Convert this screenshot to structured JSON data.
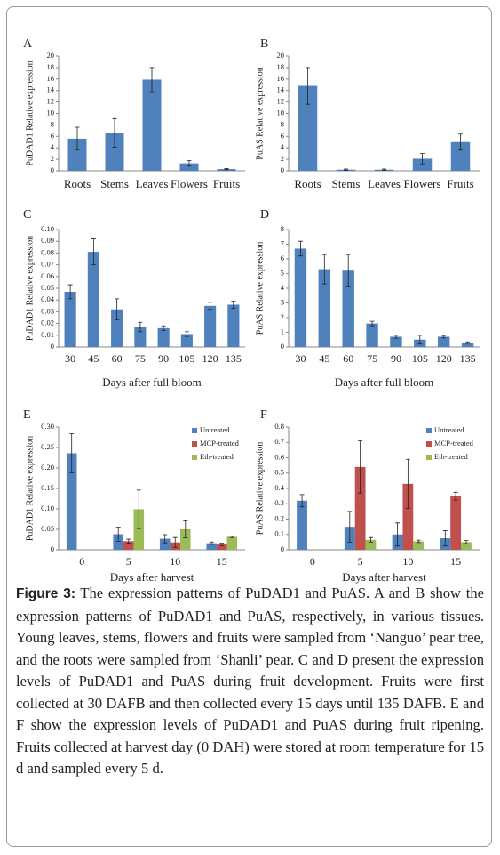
{
  "chart_data": [
    {
      "type": "bar",
      "panel": "A",
      "y_label": "PuDAD1 Relative expression",
      "categories": [
        "Roots",
        "Stems",
        "Leaves",
        "Flowers",
        "Fruits"
      ],
      "values": [
        5.6,
        6.6,
        15.9,
        1.3,
        0.3
      ],
      "errors": [
        2.0,
        2.5,
        2.1,
        0.5,
        0.1
      ],
      "color": "#4f81bd",
      "ylim": [
        0,
        20
      ],
      "yticks": [
        0,
        2,
        4,
        6,
        8,
        10,
        12,
        14,
        16,
        18,
        20
      ]
    },
    {
      "type": "bar",
      "panel": "B",
      "y_label": "PuAS Relative expression",
      "categories": [
        "Roots",
        "Stems",
        "Leaves",
        "Flowers",
        "Fruits"
      ],
      "values": [
        14.8,
        0.2,
        0.2,
        2.1,
        5.0
      ],
      "errors": [
        3.2,
        0.1,
        0.1,
        0.9,
        1.4
      ],
      "color": "#4f81bd",
      "ylim": [
        0,
        20
      ],
      "yticks": [
        0,
        2,
        4,
        6,
        8,
        10,
        12,
        14,
        16,
        18,
        20
      ]
    },
    {
      "type": "bar",
      "panel": "C",
      "y_label": "PuDAD1 Relative expression",
      "x_label": "Days after full bloom",
      "categories": [
        "30",
        "45",
        "60",
        "75",
        "90",
        "105",
        "120",
        "135"
      ],
      "values": [
        0.047,
        0.081,
        0.032,
        0.017,
        0.016,
        0.011,
        0.035,
        0.036
      ],
      "errors": [
        0.006,
        0.011,
        0.009,
        0.004,
        0.002,
        0.002,
        0.003,
        0.003
      ],
      "color": "#4f81bd",
      "ylim": [
        0,
        0.1
      ],
      "yticks": [
        0,
        0.01,
        0.02,
        0.03,
        0.04,
        0.05,
        0.06,
        0.07,
        0.08,
        0.09,
        {
          "value": 0.1,
          "label": "0.10"
        }
      ]
    },
    {
      "type": "bar",
      "panel": "D",
      "y_label": "PuAS Relative expression",
      "x_label": "Days after full bloom",
      "categories": [
        "30",
        "45",
        "60",
        "75",
        "90",
        "105",
        "120",
        "135"
      ],
      "values": [
        6.7,
        5.3,
        5.2,
        1.6,
        0.7,
        0.5,
        0.7,
        0.3
      ],
      "errors": [
        0.5,
        1.0,
        1.1,
        0.15,
        0.1,
        0.3,
        0.08,
        0.05
      ],
      "color": "#4f81bd",
      "ylim": [
        0,
        8
      ],
      "yticks": [
        0,
        1,
        2,
        3,
        4,
        5,
        6,
        7,
        8
      ]
    },
    {
      "type": "grouped_bar",
      "panel": "E",
      "y_label": "PuDAD1 Relative expression",
      "x_label": "Days after harvest",
      "categories": [
        "0",
        "5",
        "10",
        "15"
      ],
      "legend": "upper right",
      "series": [
        {
          "name": "Untreated",
          "color": "#4f81bd",
          "values": [
            0.236,
            0.038,
            0.027,
            0.016
          ],
          "errors": [
            0.048,
            0.017,
            0.01,
            0.003
          ]
        },
        {
          "name": "MCP-treated",
          "color": "#c0504d",
          "values": [
            null,
            0.021,
            0.018,
            0.013
          ],
          "errors": [
            null,
            0.005,
            0.012,
            0.003
          ]
        },
        {
          "name": "Eth-treated",
          "color": "#9bbb59",
          "values": [
            null,
            0.099,
            0.05,
            0.032
          ],
          "errors": [
            null,
            0.047,
            0.021,
            0.002
          ]
        }
      ],
      "ylim": [
        0,
        0.3
      ],
      "yticks": [
        0,
        0.05,
        {
          "value": 0.1,
          "label": "0.10"
        },
        0.15,
        {
          "value": 0.2,
          "label": "0.20"
        },
        0.25,
        {
          "value": 0.3,
          "label": "0.30"
        }
      ]
    },
    {
      "type": "grouped_bar",
      "panel": "F",
      "y_label": "PuAS Relative expression",
      "x_label": "Days after harvest",
      "categories": [
        "0",
        "5",
        "10",
        "15"
      ],
      "legend": "upper right",
      "series": [
        {
          "name": "Untreated",
          "color": "#4f81bd",
          "values": [
            0.32,
            0.15,
            0.1,
            0.075
          ],
          "errors": [
            0.04,
            0.1,
            0.075,
            0.05
          ]
        },
        {
          "name": "MCP-treated",
          "color": "#c0504d",
          "values": [
            null,
            0.54,
            0.43,
            0.35
          ],
          "errors": [
            null,
            0.17,
            0.16,
            0.025
          ]
        },
        {
          "name": "Eth-treated",
          "color": "#9bbb59",
          "values": [
            null,
            0.065,
            0.055,
            0.05
          ],
          "errors": [
            null,
            0.015,
            0.008,
            0.01
          ]
        }
      ],
      "ylim": [
        0,
        0.8
      ],
      "yticks": [
        0,
        0.1,
        0.2,
        0.3,
        0.4,
        0.5,
        0.6,
        0.7,
        0.8
      ]
    }
  ],
  "caption": {
    "label": "Figure 3:",
    "text": "The expression patterns of PuDAD1 and PuAS. A and B show the expression patterns of PuDAD1 and PuAS, respectively, in various tissues. Young leaves, stems, flowers and fruits were sampled from ‘Nanguo’ pear tree, and the roots were sampled from ‘Shanli’ pear. C and D present the expression levels of PuDAD1 and PuAS during fruit development. Fruits were first collected at 30 DAFB and then collected every 15 days until 135 DAFB. E and F show the expression levels of PuDAD1 and PuAS during fruit ripening. Fruits collected at harvest day (0 DAH) were stored at room temperature for 15 d and sampled every 5 d."
  }
}
